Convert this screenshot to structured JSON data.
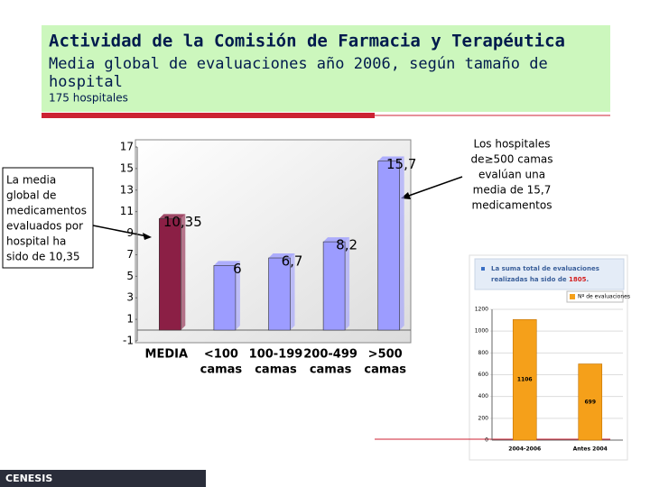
{
  "header": {
    "title": "Actividad de la Comisión de Farmacia y Terapéutica",
    "subtitle_line1": "Media global de evaluaciones año 2006, según tamaño de",
    "subtitle_line2": "hospital",
    "note": "175 hospitales"
  },
  "left_callout": [
    "La media",
    "global de",
    "medicamentos",
    "evaluados por",
    "hospital ha",
    "sido de 10,35"
  ],
  "right_callout": [
    "Los hospitales",
    "de≥500 camas",
    "evalúan una",
    "media de 15,7",
    "medicamentos"
  ],
  "inset_note": {
    "line1": "La suma total de evaluaciones",
    "line2": "realizadas ha sido de ",
    "highlight": "1805",
    "end": "."
  },
  "footer": "CENESIS",
  "chart_data": [
    {
      "type": "bar",
      "categories": [
        [
          "MEDIA"
        ],
        [
          "<100",
          "camas"
        ],
        [
          "100-199",
          "camas"
        ],
        [
          "200-499",
          "camas"
        ],
        [
          ">500",
          "camas"
        ]
      ],
      "values": [
        10.35,
        6,
        6.7,
        8.2,
        15.7
      ],
      "value_labels": [
        "10,35",
        "6",
        "6,7",
        "8,2",
        "15,7"
      ],
      "colors": [
        "#8b1f45",
        "#9c9cff",
        "#9c9cff",
        "#9c9cff",
        "#9c9cff"
      ],
      "ylim": [
        -1,
        17
      ],
      "yticks": [
        -1,
        1,
        3,
        5,
        7,
        9,
        11,
        13,
        15,
        17
      ]
    },
    {
      "type": "bar",
      "categories": [
        "2004-2006",
        "Antes 2004"
      ],
      "series": [
        {
          "name": "Nº de evaluaciones",
          "color": "#f5a01a",
          "values": [
            1106,
            699
          ]
        }
      ],
      "ylim": [
        0,
        1200
      ],
      "yticks": [
        0,
        200,
        400,
        600,
        800,
        1000,
        1200
      ],
      "legend": "top-right"
    }
  ]
}
